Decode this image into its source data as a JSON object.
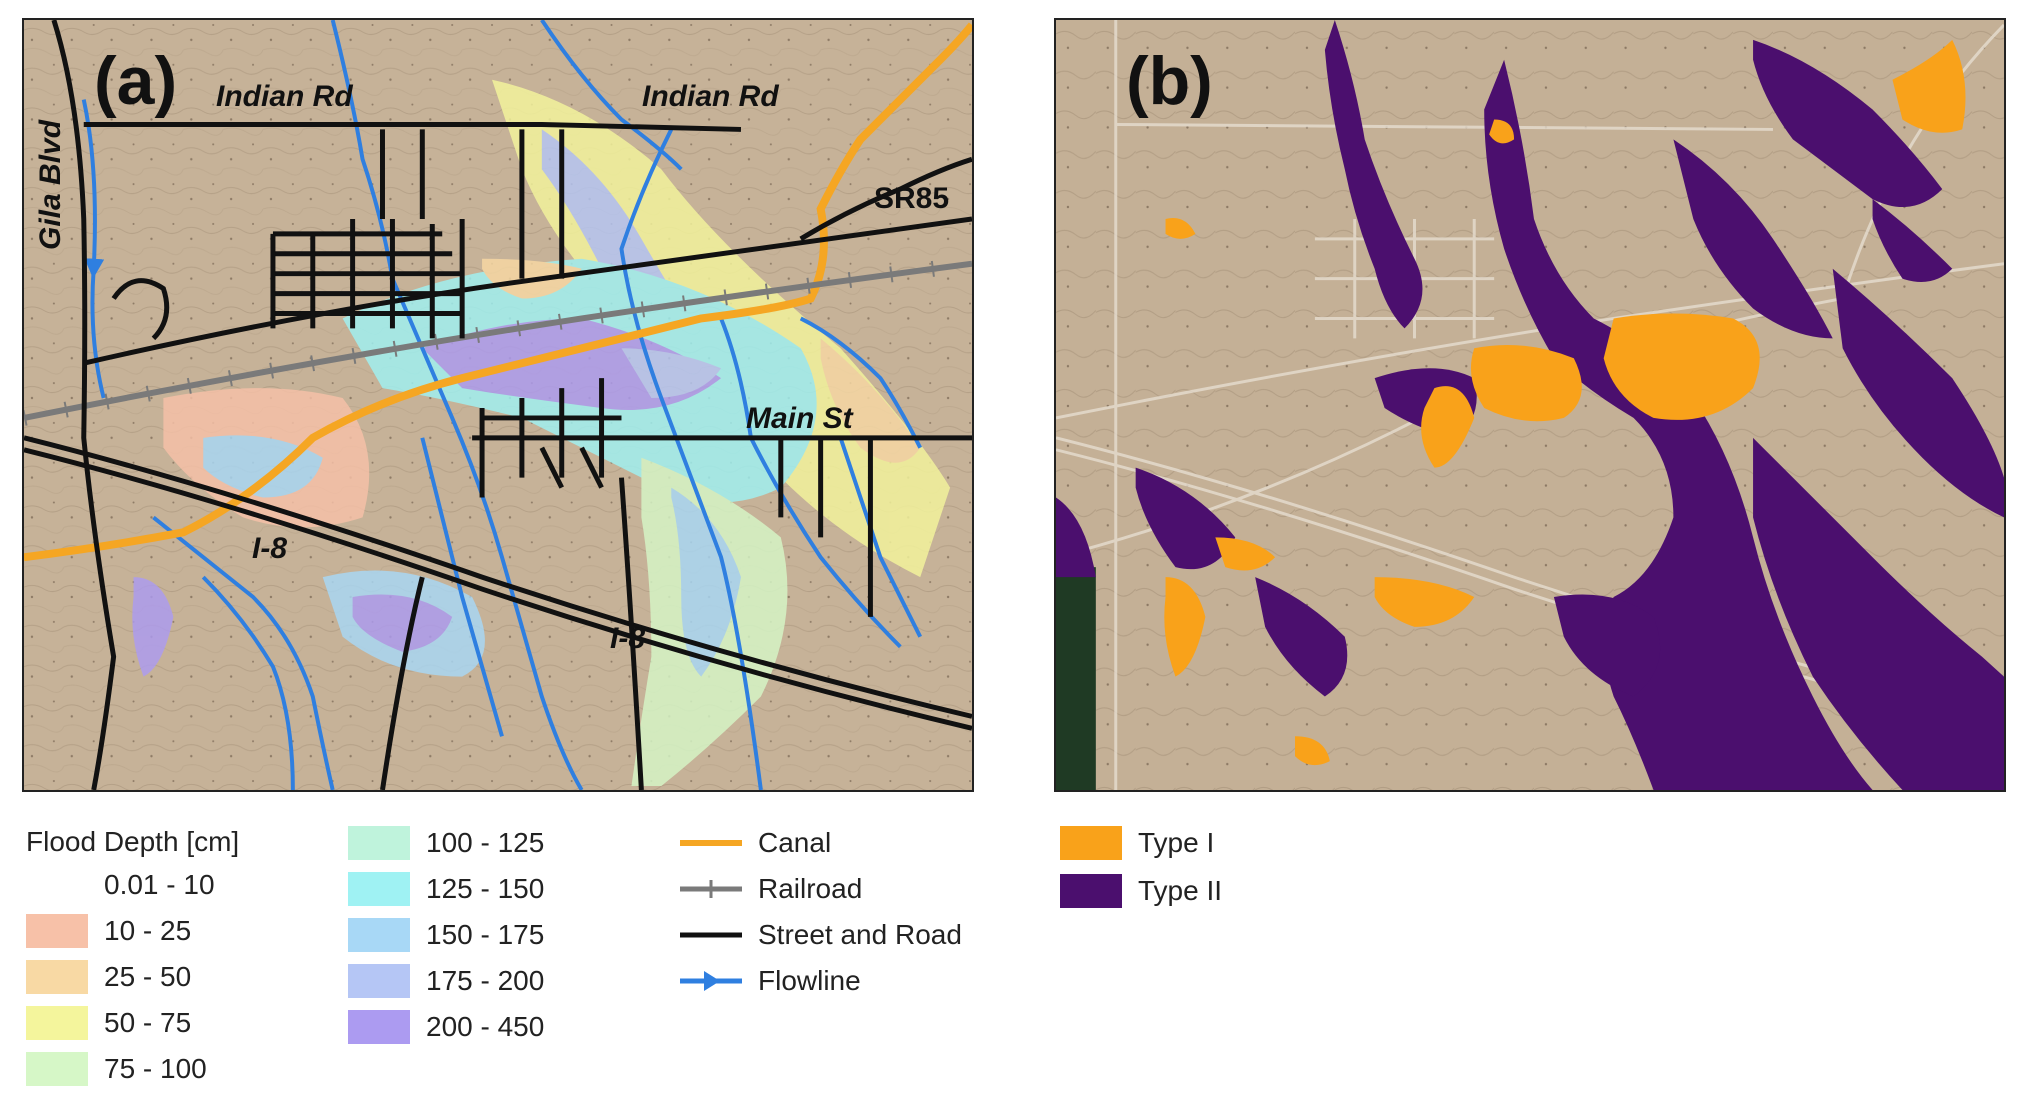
{
  "panel_a": {
    "label": "(a)",
    "road_labels": {
      "indian_rd_1": "Indian Rd",
      "indian_rd_2": "Indian Rd",
      "gila_blvd": "Gila Blvd",
      "sr85": "SR85",
      "main_st": "Main St",
      "i8_1": "I-8",
      "i8_2": "I-8"
    }
  },
  "panel_b": {
    "label": "(b)"
  },
  "flood_legend": {
    "title": "Flood Depth [cm]",
    "classes": [
      {
        "label": "0.01 - 10",
        "color": "#ffffff"
      },
      {
        "label": "10 - 25",
        "color": "#f7c1a8"
      },
      {
        "label": "25 - 50",
        "color": "#f8d9a4"
      },
      {
        "label": "50 - 75",
        "color": "#f4f59c"
      },
      {
        "label": "75 - 100",
        "color": "#d6f7c7"
      },
      {
        "label": "100 - 125",
        "color": "#bff3dc"
      },
      {
        "label": "125 - 150",
        "color": "#9ff2f3"
      },
      {
        "label": "150 - 175",
        "color": "#a8d8f6"
      },
      {
        "label": "175 - 200",
        "color": "#b5c6f5"
      },
      {
        "label": "200 - 450",
        "color": "#ac9bf1"
      }
    ]
  },
  "line_legend": [
    {
      "label": "Canal",
      "symbol": "canal-line",
      "color": "#f5a623"
    },
    {
      "label": "Railroad",
      "symbol": "railroad-line",
      "color": "#7a7a7a"
    },
    {
      "label": "Street and Road",
      "symbol": "road-line",
      "color": "#111111"
    },
    {
      "label": "Flowline",
      "symbol": "flowline-arrow",
      "color": "#2f7fe0"
    }
  ],
  "type_legend": [
    {
      "label": "Type I",
      "color": "#f9a21a"
    },
    {
      "label": "Type II",
      "color": "#4b0f6e"
    }
  ],
  "colors": {
    "desert": "#c8b49a",
    "canal": "#f5a623",
    "flowline": "#2f7fe0",
    "road": "#111111",
    "railroad": "#7a7a7a",
    "type1": "#f9a21a",
    "type2": "#4b0f6e"
  }
}
